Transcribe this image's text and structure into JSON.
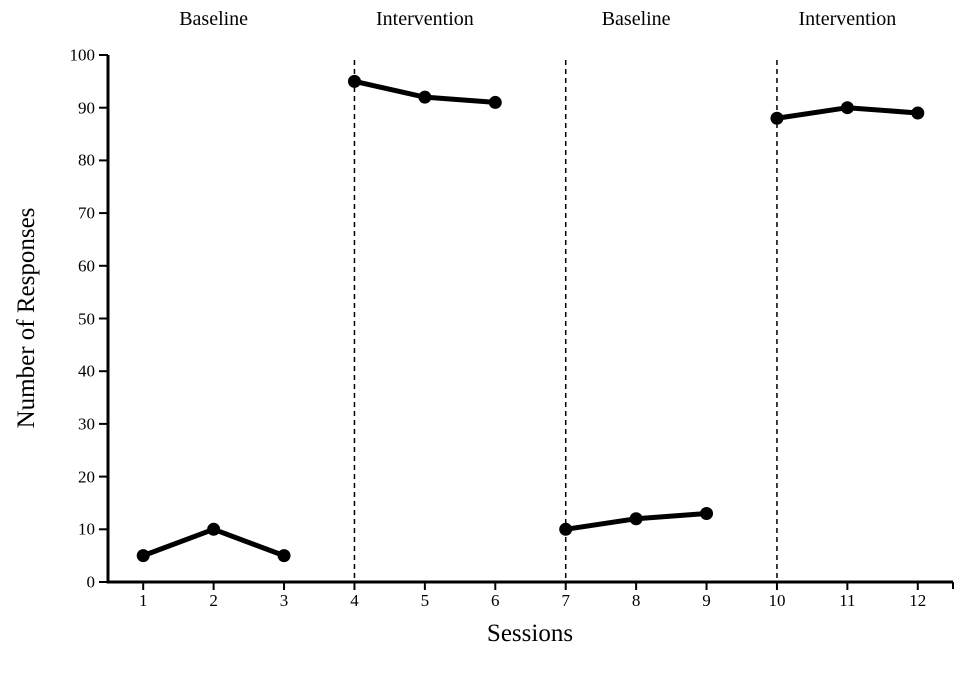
{
  "figure": {
    "background_color": "#ffffff",
    "line_color": "#000000",
    "text_color": "#000000"
  },
  "chart_data": {
    "type": "line",
    "title": "",
    "xlabel": "Sessions",
    "ylabel": "Number of Responses",
    "x": [
      1,
      2,
      3,
      4,
      5,
      6,
      7,
      8,
      9,
      10,
      11,
      12
    ],
    "ylim": [
      0,
      100
    ],
    "yticks": [
      0,
      10,
      20,
      30,
      40,
      50,
      60,
      70,
      80,
      90,
      100
    ],
    "grid": false,
    "legend": "none",
    "marker": "filled-circle",
    "line_width": 5,
    "phases": [
      {
        "label": "Baseline",
        "sessions": [
          1,
          2,
          3
        ],
        "values": [
          5,
          10,
          5
        ]
      },
      {
        "label": "Intervention",
        "sessions": [
          4,
          5,
          6
        ],
        "values": [
          95,
          92,
          91
        ]
      },
      {
        "label": "Baseline",
        "sessions": [
          7,
          8,
          9
        ],
        "values": [
          10,
          12,
          13
        ]
      },
      {
        "label": "Intervention",
        "sessions": [
          10,
          11,
          12
        ],
        "values": [
          88,
          90,
          89
        ]
      }
    ],
    "phase_boundaries_x": [
      3.5,
      6.5,
      9.5
    ],
    "boundary_style": "dashed-vertical-line"
  }
}
